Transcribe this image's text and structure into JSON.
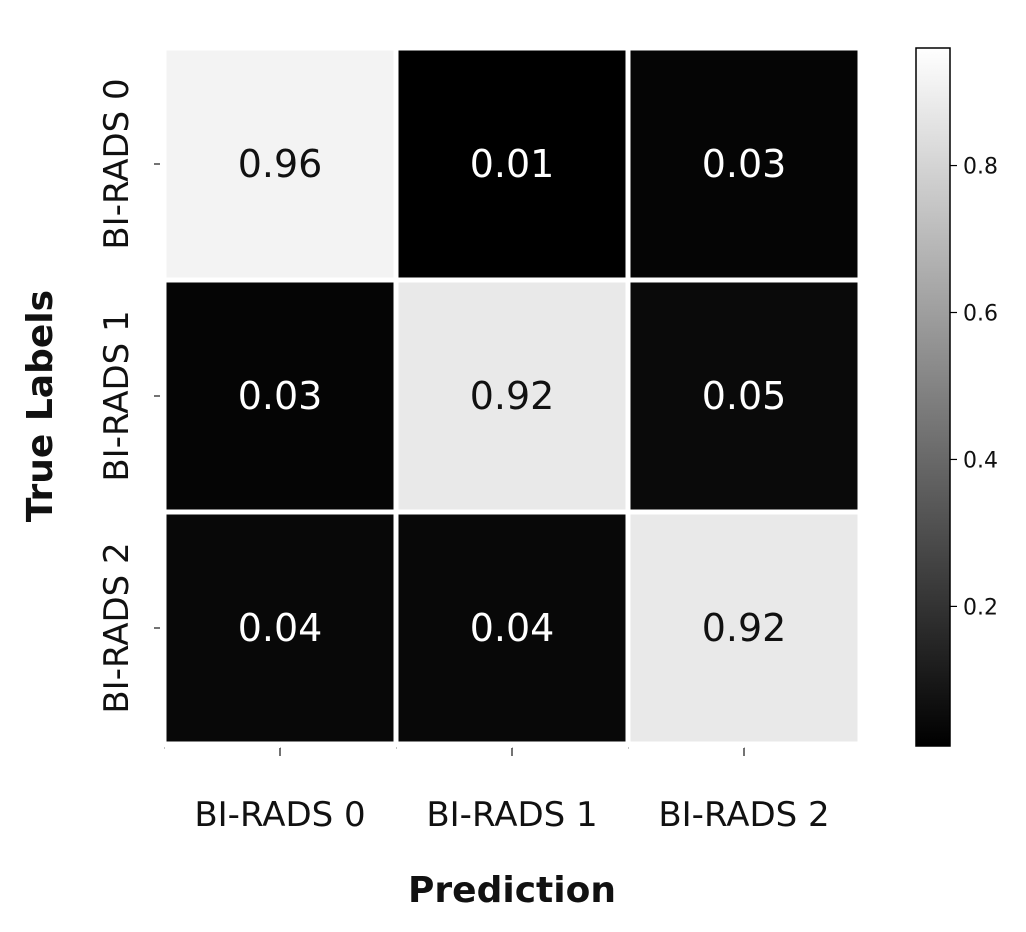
{
  "chart_data": {
    "type": "heatmap",
    "xlabel": "Prediction",
    "ylabel": "True  Labels",
    "x_categories": [
      "BI-RADS 0",
      "BI-RADS 1",
      "BI-RADS 2"
    ],
    "y_categories": [
      "BI-RADS 0",
      "BI-RADS 1",
      "BI-RADS 2"
    ],
    "values": [
      [
        0.96,
        0.01,
        0.03
      ],
      [
        0.03,
        0.92,
        0.05
      ],
      [
        0.04,
        0.04,
        0.92
      ]
    ],
    "colormap": "gray",
    "color_range": [
      0.01,
      0.96
    ],
    "colorbar": {
      "ticks": [
        0.2,
        0.4,
        0.6,
        0.8
      ],
      "tick_labels": [
        "0.2",
        "0.4",
        "0.6",
        "0.8"
      ]
    },
    "colors": {
      "low": "#000000",
      "high": "#ffffff",
      "high_text": "#111111",
      "low_text": "#ffffff"
    }
  }
}
